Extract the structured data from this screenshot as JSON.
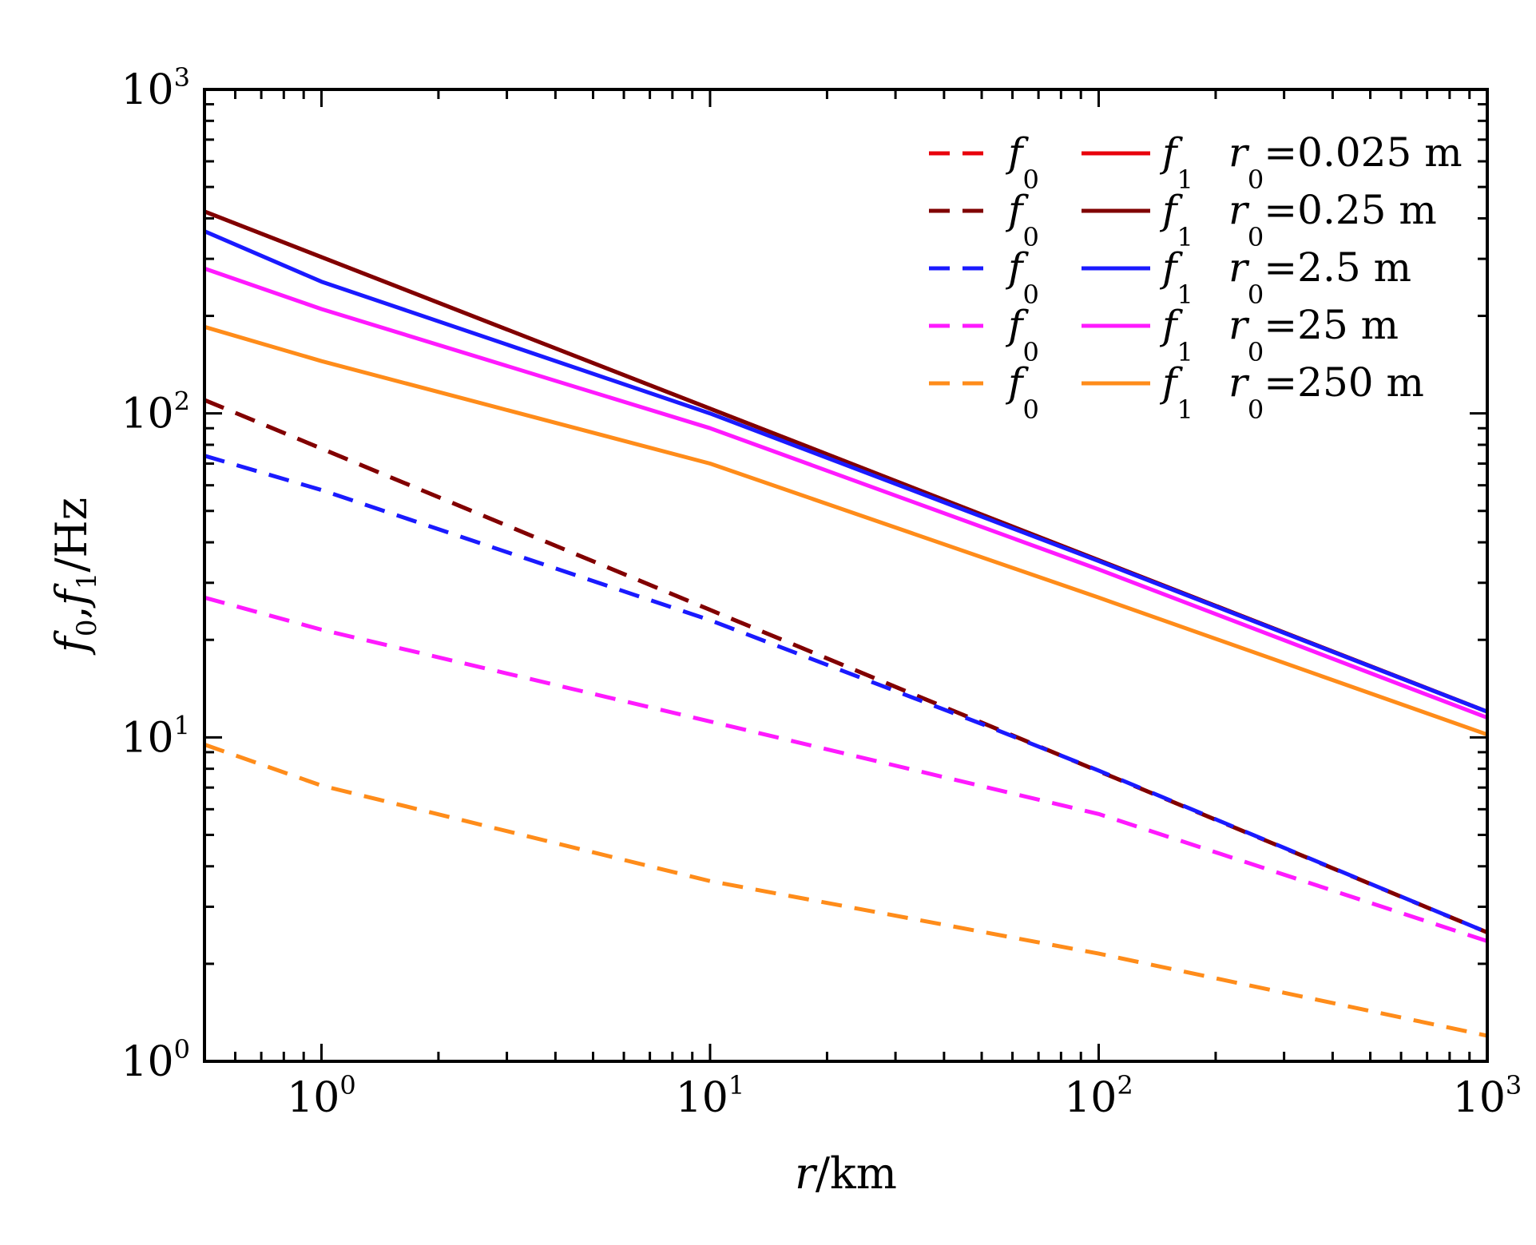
{
  "chart_data": {
    "type": "line",
    "xscale": "log",
    "yscale": "log",
    "xlim": [
      0.5,
      1000
    ],
    "ylim": [
      1,
      1000
    ],
    "grid": false,
    "legend_position": "top-right",
    "xlabel": {
      "var": "r",
      "unit": "/km"
    },
    "ylabel": {
      "f0": "f",
      "f0_sub": "0",
      "sep": ",",
      "f1": "f",
      "f1_sub": "1",
      "unit": "/Hz"
    },
    "x_ticks": [
      {
        "value": 1,
        "base": "10",
        "exp": "0"
      },
      {
        "value": 10,
        "base": "10",
        "exp": "1"
      },
      {
        "value": 100,
        "base": "10",
        "exp": "2"
      },
      {
        "value": 1000,
        "base": "10",
        "exp": "3"
      }
    ],
    "y_ticks": [
      {
        "value": 1,
        "base": "10",
        "exp": "0"
      },
      {
        "value": 10,
        "base": "10",
        "exp": "1"
      },
      {
        "value": 100,
        "base": "10",
        "exp": "2"
      },
      {
        "value": 1000,
        "base": "10",
        "exp": "3"
      }
    ],
    "legend_labels": {
      "f0": "f",
      "f0_sub": "0",
      "f1": "f",
      "f1_sub": "1",
      "r0": "r",
      "r0_sub": "0"
    },
    "series": [
      {
        "group": "0.025 m",
        "color": "#e8000b",
        "style": "dashed",
        "legend": "=0.025 m",
        "x": [
          0.5,
          1000
        ],
        "y": [
          110,
          2.5
        ]
      },
      {
        "group": "0.025 m",
        "color": "#e8000b",
        "style": "solid",
        "x": [
          0.5,
          1000
        ],
        "y": [
          420,
          12
        ]
      },
      {
        "group": "0.25 m",
        "color": "#800000",
        "style": "dashed",
        "legend": "=0.25 m",
        "x": [
          0.5,
          1000
        ],
        "y": [
          110,
          2.5
        ]
      },
      {
        "group": "0.25 m",
        "color": "#800000",
        "style": "solid",
        "x": [
          0.5,
          1000
        ],
        "y": [
          420,
          12
        ]
      },
      {
        "group": "2.5 m",
        "color": "#1a1aff",
        "style": "dashed",
        "legend": "=2.5 m",
        "x": [
          0.5,
          1,
          10,
          50,
          100,
          1000
        ],
        "y": [
          74,
          58,
          23,
          11,
          7.9,
          2.5
        ]
      },
      {
        "group": "2.5 m",
        "color": "#1a1aff",
        "style": "solid",
        "x": [
          0.5,
          1,
          10,
          100,
          1000
        ],
        "y": [
          365,
          255,
          100,
          35,
          12
        ]
      },
      {
        "group": "25 m",
        "color": "#ff1aff",
        "style": "dashed",
        "legend": "=25 m",
        "x": [
          0.5,
          1,
          10,
          100,
          1000
        ],
        "y": [
          27,
          21.5,
          11.2,
          5.8,
          2.35
        ]
      },
      {
        "group": "25 m",
        "color": "#ff1aff",
        "style": "solid",
        "x": [
          0.5,
          1,
          10,
          100,
          1000
        ],
        "y": [
          280,
          210,
          90,
          33,
          11.5
        ]
      },
      {
        "group": "250 m",
        "color": "#ff8c1a",
        "style": "dashed",
        "legend": "=250 m",
        "x": [
          0.5,
          1,
          10,
          100,
          1000
        ],
        "y": [
          9.5,
          7.1,
          3.6,
          2.15,
          1.2
        ]
      },
      {
        "group": "250 m",
        "color": "#ff8c1a",
        "style": "solid",
        "x": [
          0.5,
          1,
          10,
          100,
          1000
        ],
        "y": [
          185,
          145,
          70,
          27,
          10.2
        ]
      }
    ]
  }
}
